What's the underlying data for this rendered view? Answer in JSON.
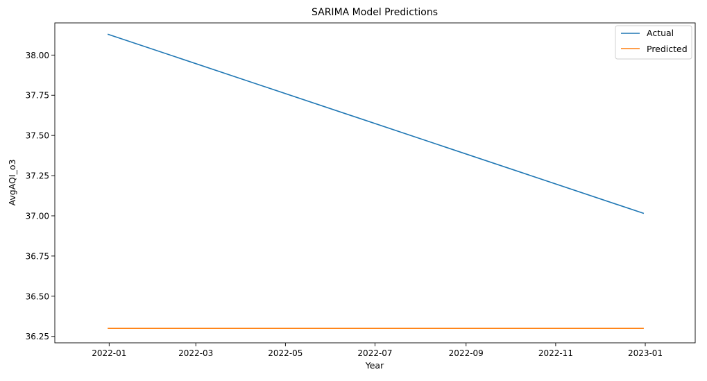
{
  "chart_data": {
    "type": "line",
    "title": "SARIMA Model Predictions",
    "xlabel": "Year",
    "ylabel": "AvgAQI_o3",
    "x_ticks": [
      "2022-01",
      "2022-03",
      "2022-05",
      "2022-07",
      "2022-09",
      "2022-11",
      "2023-01"
    ],
    "x_tick_dates": [
      "2022-01-01",
      "2022-03-01",
      "2022-05-01",
      "2022-07-01",
      "2022-09-01",
      "2022-11-01",
      "2023-01-01"
    ],
    "y_ticks": [
      "36.25",
      "36.50",
      "36.75",
      "37.00",
      "37.25",
      "37.50",
      "37.75",
      "38.00"
    ],
    "y_tick_values": [
      36.25,
      36.5,
      36.75,
      37.0,
      37.25,
      37.5,
      37.75,
      38.0
    ],
    "xlim": [
      "2021-11-25",
      "2023-02-04"
    ],
    "ylim": [
      36.21,
      38.2
    ],
    "grid": false,
    "legend_position": "top-right",
    "series": [
      {
        "name": "Actual",
        "color": "#1f77b4",
        "x": [
          "2021-12-31",
          "2022-12-31"
        ],
        "values": [
          38.13,
          37.015
        ]
      },
      {
        "name": "Predicted",
        "color": "#ff7f0e",
        "x": [
          "2021-12-31",
          "2022-12-31"
        ],
        "values": [
          36.3,
          36.3
        ]
      }
    ]
  }
}
